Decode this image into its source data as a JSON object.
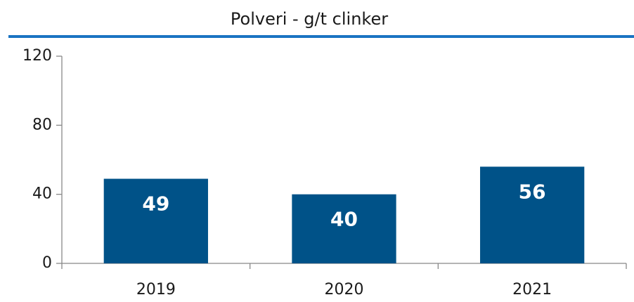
{
  "chart_data": {
    "type": "bar",
    "title": "Polveri - g/t clinker",
    "categories": [
      "2019",
      "2020",
      "2021"
    ],
    "values": [
      49,
      40,
      56
    ],
    "color": "#005288",
    "ylim": [
      0,
      120
    ],
    "yticks": [
      0,
      40,
      80,
      120
    ],
    "grid": false
  }
}
